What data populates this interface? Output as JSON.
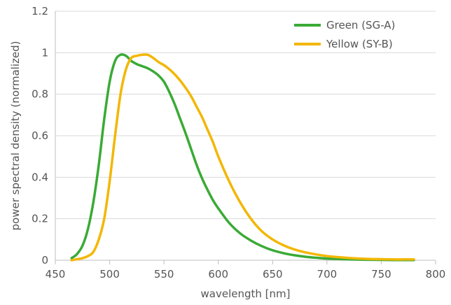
{
  "chart_data": {
    "type": "line",
    "xlabel": "wavelength [nm]",
    "ylabel": "power spectral density (normalized)",
    "xlim": [
      450,
      800
    ],
    "ylim": [
      0,
      1.2
    ],
    "x_ticks": [
      450,
      500,
      550,
      600,
      650,
      700,
      750,
      800
    ],
    "y_ticks": [
      0,
      0.2,
      0.4,
      0.6,
      0.8,
      1,
      1.2
    ],
    "x_tick_labels": [
      "450",
      "500",
      "550",
      "600",
      "650",
      "700",
      "750",
      "800"
    ],
    "y_tick_labels": [
      "0",
      "0.2",
      "0.4",
      "0.6",
      "0.8",
      "1",
      "1.2"
    ],
    "grid": {
      "horizontal": true,
      "vertical": false
    },
    "legend_position": "top-right",
    "series": [
      {
        "name": "Green (SG-A)",
        "color": "#3aaa35",
        "x": [
          465,
          470,
          475,
          480,
          485,
          490,
          495,
          500,
          505,
          510,
          515,
          520,
          525,
          530,
          535,
          540,
          545,
          550,
          555,
          560,
          565,
          570,
          575,
          580,
          585,
          590,
          595,
          600,
          610,
          620,
          630,
          640,
          650,
          660,
          670,
          680,
          690,
          700,
          710,
          720,
          730,
          740,
          750,
          760,
          770,
          780
        ],
        "y": [
          0.01,
          0.03,
          0.07,
          0.15,
          0.28,
          0.46,
          0.68,
          0.86,
          0.96,
          0.99,
          0.985,
          0.96,
          0.945,
          0.935,
          0.925,
          0.91,
          0.89,
          0.86,
          0.81,
          0.75,
          0.68,
          0.61,
          0.535,
          0.46,
          0.395,
          0.34,
          0.29,
          0.25,
          0.18,
          0.13,
          0.095,
          0.068,
          0.048,
          0.034,
          0.024,
          0.017,
          0.012,
          0.008,
          0.006,
          0.004,
          0.003,
          0.002,
          0.0015,
          0.001,
          0.001,
          0.001
        ]
      },
      {
        "name": "Yellow (SY-B)",
        "color": "#f2b705",
        "x": [
          465,
          470,
          475,
          480,
          485,
          490,
          495,
          500,
          505,
          510,
          515,
          520,
          525,
          530,
          535,
          540,
          545,
          550,
          555,
          560,
          565,
          570,
          575,
          580,
          585,
          590,
          595,
          600,
          610,
          620,
          630,
          640,
          650,
          660,
          670,
          680,
          690,
          700,
          710,
          720,
          730,
          740,
          750,
          760,
          770,
          780
        ],
        "y": [
          0.0,
          0.005,
          0.01,
          0.02,
          0.04,
          0.1,
          0.2,
          0.38,
          0.6,
          0.8,
          0.92,
          0.975,
          0.985,
          0.99,
          0.99,
          0.975,
          0.955,
          0.94,
          0.92,
          0.895,
          0.865,
          0.83,
          0.79,
          0.74,
          0.69,
          0.63,
          0.57,
          0.5,
          0.38,
          0.28,
          0.2,
          0.14,
          0.1,
          0.072,
          0.052,
          0.038,
          0.028,
          0.02,
          0.015,
          0.011,
          0.008,
          0.006,
          0.005,
          0.004,
          0.004,
          0.004
        ]
      }
    ]
  }
}
